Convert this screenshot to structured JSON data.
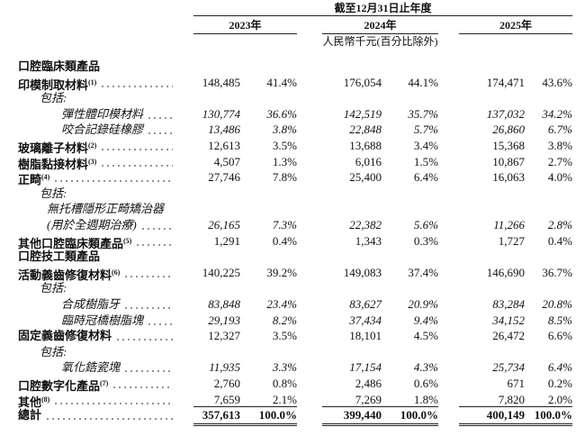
{
  "header": {
    "period": "截至12月31日止年度",
    "years": [
      "2023年",
      "2024年",
      "2025年"
    ],
    "unit": "人民幣千元(百分比除外)"
  },
  "rows": [
    {
      "label": "口腔臨床類產品",
      "style": "section"
    },
    {
      "label": "印模制取材料",
      "note": "(1)",
      "style": "item",
      "values": [
        "148,485",
        "41.4%",
        "176,054",
        "44.1%",
        "174,471",
        "43.6%"
      ]
    },
    {
      "label": "包括:",
      "style": "incl"
    },
    {
      "label": "彈性體印模材料",
      "style": "sub",
      "values": [
        "130,774",
        "36.6%",
        "142,519",
        "35.7%",
        "137,032",
        "34.2%"
      ]
    },
    {
      "label": "咬合記錄硅橡膠",
      "style": "sub",
      "values": [
        "13,486",
        "3.8%",
        "22,848",
        "5.7%",
        "26,860",
        "6.7%"
      ]
    },
    {
      "label": "玻璃離子材料",
      "note": "(2)",
      "style": "item",
      "values": [
        "12,613",
        "3.5%",
        "13,688",
        "3.4%",
        "15,368",
        "3.8%"
      ]
    },
    {
      "label": "樹脂黏接材料",
      "note": "(3)",
      "style": "item",
      "values": [
        "4,507",
        "1.3%",
        "6,016",
        "1.5%",
        "10,867",
        "2.7%"
      ]
    },
    {
      "label": "正畸",
      "note": "(4)",
      "style": "item",
      "values": [
        "27,746",
        "7.8%",
        "25,400",
        "6.4%",
        "16,063",
        "4.0%"
      ]
    },
    {
      "label": "包括:",
      "style": "incl"
    },
    {
      "label": "無托槽隱形正畸矯治器",
      "style": "sub2"
    },
    {
      "label": "(用於全週期治療)",
      "style": "sub2",
      "values": [
        "26,165",
        "7.3%",
        "22,382",
        "5.6%",
        "11,266",
        "2.8%"
      ]
    },
    {
      "label": "其他口腔臨床類產品",
      "note": "(5)",
      "style": "item",
      "values": [
        "1,291",
        "0.4%",
        "1,343",
        "0.3%",
        "1,727",
        "0.4%"
      ]
    },
    {
      "label": "口腔技工類產品",
      "style": "section"
    },
    {
      "label": "活動義齒修復材料",
      "note": "(6)",
      "style": "item",
      "values": [
        "140,225",
        "39.2%",
        "149,083",
        "37.4%",
        "146,690",
        "36.7%"
      ]
    },
    {
      "label": "包括:",
      "style": "incl"
    },
    {
      "label": "合成樹脂牙",
      "style": "sub",
      "values": [
        "83,848",
        "23.4%",
        "83,627",
        "20.9%",
        "83,284",
        "20.8%"
      ]
    },
    {
      "label": "臨時冠橋樹脂塊",
      "style": "sub",
      "values": [
        "29,193",
        "8.2%",
        "37,434",
        "9.4%",
        "34,152",
        "8.5%"
      ]
    },
    {
      "label": "固定義齒修復材料",
      "style": "item",
      "values": [
        "12,327",
        "3.5%",
        "18,101",
        "4.5%",
        "26,472",
        "6.6%"
      ]
    },
    {
      "label": "包括:",
      "style": "incl"
    },
    {
      "label": "氧化鋯瓷塊",
      "style": "sub",
      "values": [
        "11,935",
        "3.3%",
        "17,154",
        "4.3%",
        "25,734",
        "6.4%"
      ]
    },
    {
      "label": "口腔數字化產品",
      "note": "(7)",
      "style": "item",
      "values": [
        "2,760",
        "0.8%",
        "2,486",
        "0.6%",
        "671",
        "0.2%"
      ]
    },
    {
      "label": "其他",
      "note": "(8)",
      "style": "item",
      "values": [
        "7,659",
        "2.1%",
        "7,269",
        "1.8%",
        "7,820",
        "2.0%"
      ]
    },
    {
      "label": "總計",
      "style": "total",
      "values": [
        "357,613",
        "100.0%",
        "399,440",
        "100.0%",
        "400,149",
        "100.0%"
      ]
    }
  ]
}
